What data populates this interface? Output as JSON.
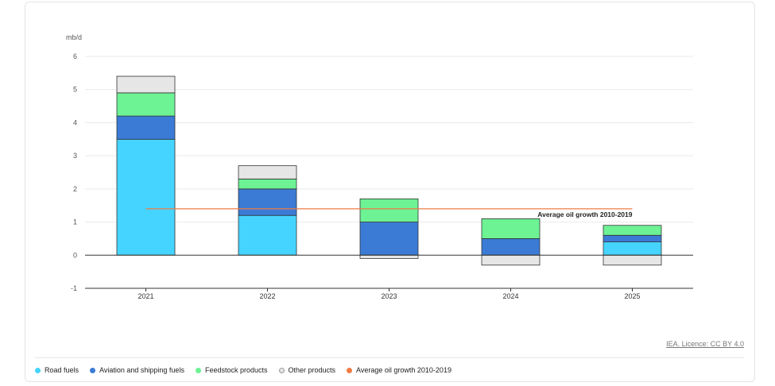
{
  "chart_data": {
    "type": "bar",
    "stacked": true,
    "ylabel": "mb/d",
    "ylim": [
      -1,
      6
    ],
    "yticks": [
      6,
      5,
      4,
      3,
      2,
      1,
      0,
      -1
    ],
    "grid": true,
    "categories": [
      "2021",
      "2022",
      "2023",
      "2024",
      "2025"
    ],
    "series": [
      {
        "name": "Road fuels",
        "color": "#45d4ff",
        "values": [
          3.5,
          1.2,
          0.0,
          0.0,
          0.4
        ]
      },
      {
        "name": "Aviation and shipping fuels",
        "color": "#3b7bd6",
        "values": [
          0.7,
          0.8,
          1.0,
          0.5,
          0.2
        ]
      },
      {
        "name": "Feedstock products",
        "color": "#6df294",
        "values": [
          0.7,
          0.3,
          0.7,
          0.6,
          0.3
        ]
      },
      {
        "name": "Other products",
        "color": "#e6e6e6",
        "values": [
          0.5,
          0.4,
          -0.1,
          -0.3,
          -0.3
        ]
      }
    ],
    "reference_line": {
      "name": "Average oil growth 2010-2019",
      "value": 1.4,
      "color": "#ef7b45",
      "label": "Average oil growth 2010-2019"
    },
    "legend_position": "bottom"
  },
  "credit": "IEA. Licence: CC BY 4.0",
  "legend": [
    {
      "label": "Road fuels",
      "color": "#45d4ff"
    },
    {
      "label": "Aviation and shipping fuels",
      "color": "#3b7bd6"
    },
    {
      "label": "Feedstock products",
      "color": "#6df294"
    },
    {
      "label": "Other products",
      "color": "#e6e6e6"
    },
    {
      "label": "Average oil growth 2010-2019",
      "color": "#ef7b45"
    }
  ]
}
